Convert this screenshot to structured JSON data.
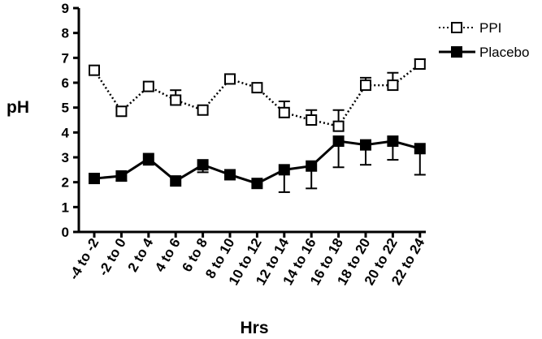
{
  "chart_data": {
    "type": "line",
    "title": "",
    "xlabel": "Hrs",
    "ylabel": "pH",
    "ylim": [
      0,
      9
    ],
    "yticks": [
      0,
      1,
      2,
      3,
      4,
      5,
      6,
      7,
      8,
      9
    ],
    "categories": [
      "-4 to -2",
      "-2 to 0",
      "2 to 4",
      "4 to 6",
      "6 to 8",
      "8 to 10",
      "10 to 12",
      "12 to 14",
      "14 to 16",
      "16 to 18",
      "18 to 20",
      "20 to 22",
      "22 to 24"
    ],
    "series": [
      {
        "name": "PPI",
        "values": [
          6.5,
          4.85,
          5.85,
          5.3,
          4.9,
          6.15,
          5.8,
          4.8,
          4.5,
          4.25,
          5.9,
          5.9,
          6.75
        ],
        "err": [
          0,
          0.15,
          0,
          0.4,
          0.15,
          0,
          0,
          0.45,
          0.4,
          0.65,
          0.3,
          0.5,
          0.2
        ],
        "style": "dotted",
        "marker": "open-square",
        "color": "#000000"
      },
      {
        "name": "Placebo",
        "values": [
          2.15,
          2.25,
          2.95,
          2.05,
          2.7,
          2.3,
          1.95,
          2.5,
          2.65,
          3.65,
          3.5,
          3.65,
          3.35
        ],
        "err": [
          0,
          0.2,
          0.25,
          0,
          0.3,
          0,
          0,
          0.9,
          0.9,
          1.05,
          0.8,
          0.75,
          1.05
        ],
        "style": "solid",
        "marker": "filled-square",
        "color": "#000000"
      }
    ],
    "legend_position": "top-right",
    "grid": false
  }
}
